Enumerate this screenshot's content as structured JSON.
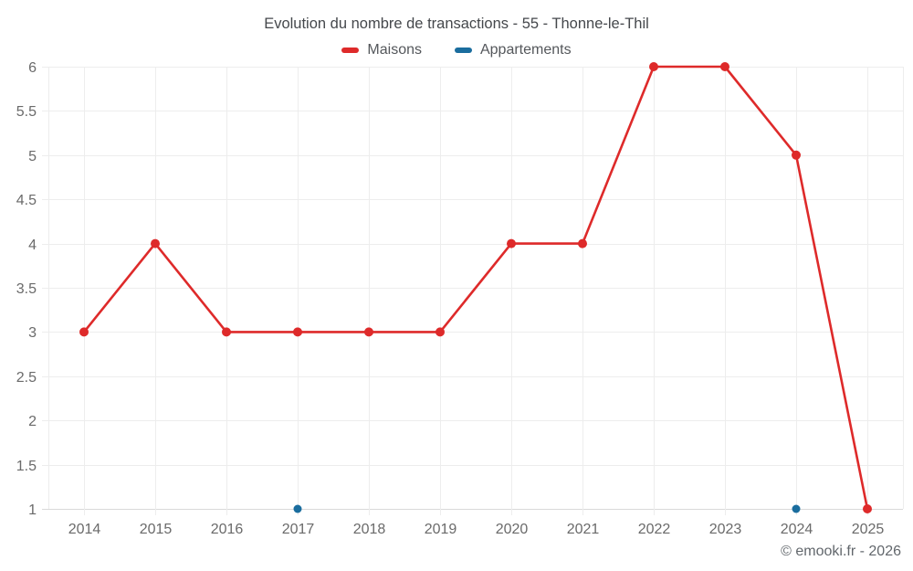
{
  "chart_data": {
    "type": "line",
    "title": "Evolution du nombre de transactions - 55 - Thonne-le-Thil",
    "categories": [
      "2014",
      "2015",
      "2016",
      "2017",
      "2018",
      "2019",
      "2020",
      "2021",
      "2022",
      "2023",
      "2024",
      "2025"
    ],
    "series": [
      {
        "name": "Maisons",
        "color": "#de2a2a",
        "values": [
          3,
          4,
          3,
          3,
          3,
          3,
          4,
          4,
          6,
          6,
          5,
          1
        ],
        "line_width": 2.6,
        "point_radius": 5
      },
      {
        "name": "Appartements",
        "color": "#1a6d9e",
        "values": [
          null,
          null,
          null,
          1,
          null,
          null,
          null,
          null,
          null,
          null,
          1,
          null
        ],
        "line_width": 2.6,
        "point_radius": 4.5
      }
    ],
    "ylim": [
      1,
      6
    ],
    "yticks": [
      "6",
      "5.5",
      "5",
      "4.5",
      "4",
      "3.5",
      "3",
      "2.5",
      "2",
      "1.5",
      "1"
    ],
    "xlabel": "",
    "ylabel": "",
    "grid": true,
    "legend_position": "top",
    "grid_color": "#ededed",
    "axis_line_color": "#d9d9d9"
  },
  "footer": {
    "copyright": "© emooki.fr - 2026"
  }
}
